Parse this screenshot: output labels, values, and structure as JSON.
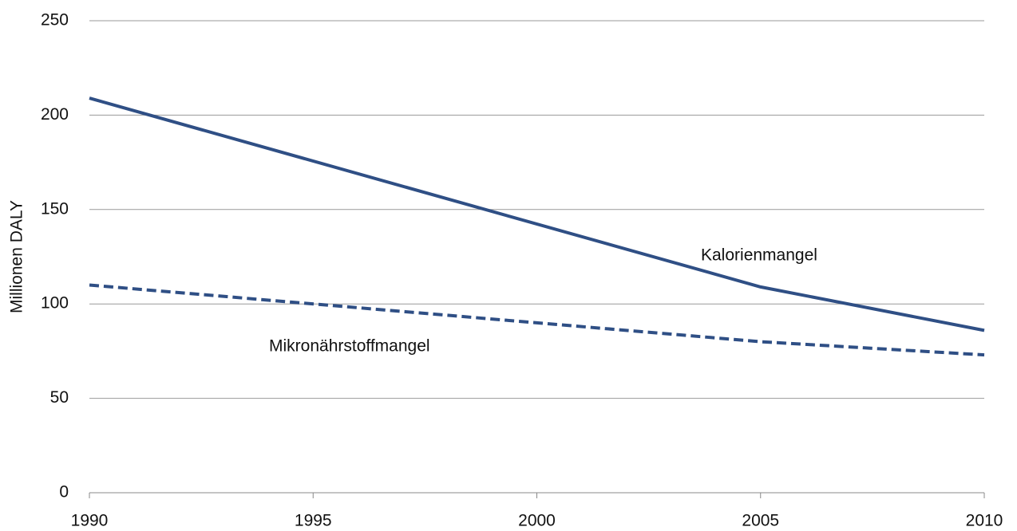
{
  "chart_data": {
    "type": "line",
    "ylabel": "Millionen DALY",
    "x": [
      1990,
      2005,
      2010
    ],
    "series": [
      {
        "name": "Kalorienmangel",
        "color": "#2f4f85",
        "dash": false,
        "values": [
          209,
          109,
          86
        ]
      },
      {
        "name": "Mikronährstoffmangel",
        "color": "#2f4f85",
        "dash": true,
        "values": [
          110,
          80,
          73
        ]
      }
    ],
    "xlim": [
      1990,
      2010
    ],
    "xticks": [
      1990,
      1995,
      2000,
      2005,
      2010
    ],
    "ylim": [
      0,
      250
    ],
    "yticks": [
      0,
      50,
      100,
      150,
      200,
      250
    ],
    "grid": true
  }
}
